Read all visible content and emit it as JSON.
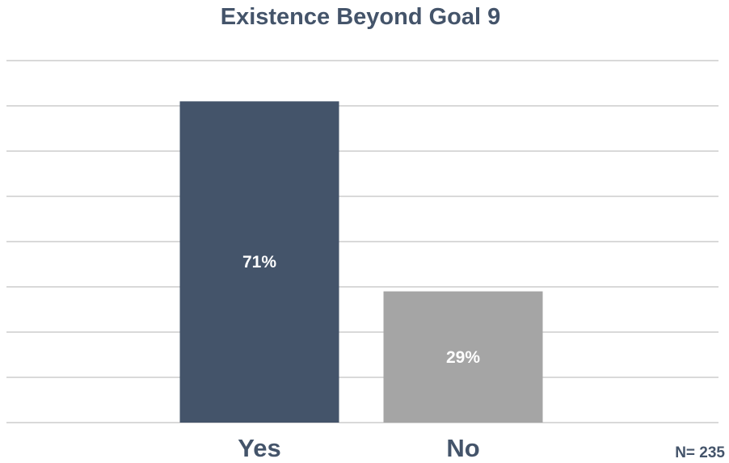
{
  "chart_data": {
    "type": "bar",
    "title": "Existence Beyond Goal 9",
    "categories": [
      "Yes",
      "No"
    ],
    "values": [
      71,
      29
    ],
    "data_labels": [
      "71%",
      "29%"
    ],
    "colors": [
      "#44546a",
      "#a5a5a5"
    ],
    "ylim": [
      0,
      80
    ],
    "grid": true,
    "note": "N= 235"
  }
}
